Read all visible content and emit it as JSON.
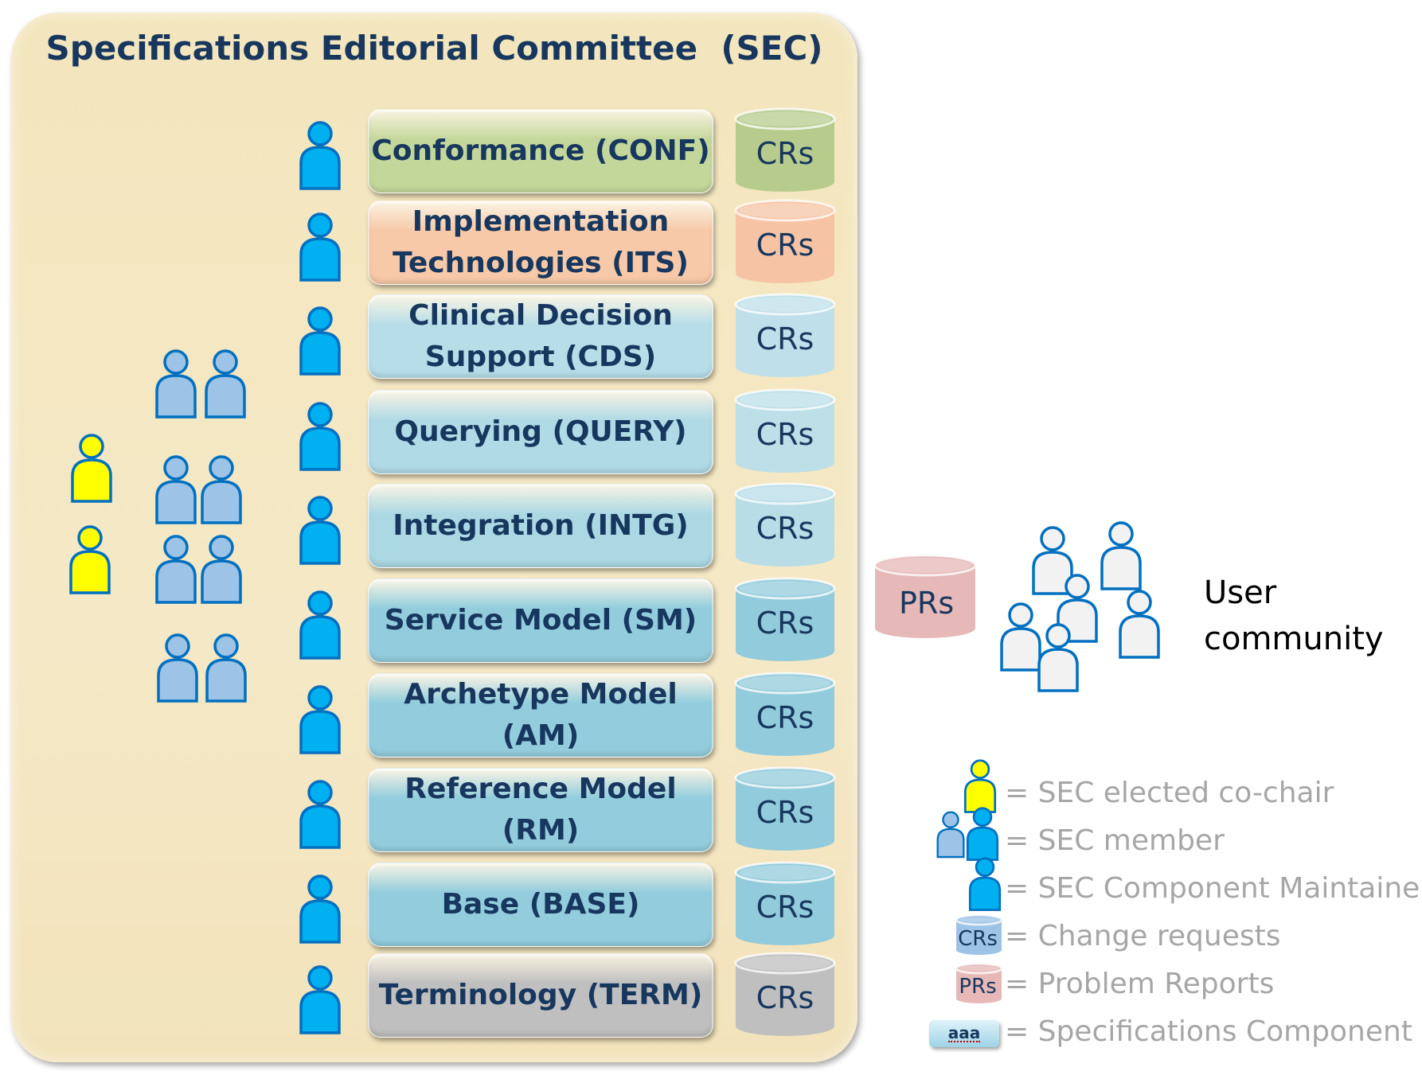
{
  "title": "Specifications Editorial Committee  (SEC)",
  "components": [
    {
      "label": "Conformance (CONF)",
      "fill": "#c4d79b",
      "cr_fill": "#b7cc8c",
      "cr_label": "CRs"
    },
    {
      "label": "Implementation\nTechnologies (ITS)",
      "fill": "#f8c9a8",
      "cr_fill": "#f6c4a4",
      "cr_label": "CRs"
    },
    {
      "label": "Clinical Decision\nSupport (CDS)",
      "fill": "#b7dee8",
      "cr_fill": "#bfe0ea",
      "cr_label": "CRs"
    },
    {
      "label": "Querying (QUERY)",
      "fill": "#b0dae6",
      "cr_fill": "#bcdfe8",
      "cr_label": "CRs"
    },
    {
      "label": "Integration (INTG)",
      "fill": "#acd8e4",
      "cr_fill": "#b9dde7",
      "cr_label": "CRs"
    },
    {
      "label": "Service Model (SM)",
      "fill": "#93cddd",
      "cr_fill": "#92cbdb",
      "cr_label": "CRs"
    },
    {
      "label": "Archetype Model (AM)",
      "fill": "#93cddd",
      "cr_fill": "#92cbdb",
      "cr_label": "CRs"
    },
    {
      "label": "Reference Model (RM)",
      "fill": "#93cddd",
      "cr_fill": "#92cbdb",
      "cr_label": "CRs"
    },
    {
      "label": "Base (BASE)",
      "fill": "#93cddd",
      "cr_fill": "#92cbdb",
      "cr_label": "CRs"
    },
    {
      "label": "Terminology (TERM)",
      "fill": "#bfbfbf",
      "cr_fill": "#bfbfbf",
      "cr_label": "CRs"
    }
  ],
  "prs_label": "PRs",
  "user_community_label": "User\ncommunity",
  "legend": {
    "cochair": "= SEC elected co-chair",
    "member": "= SEC member",
    "maintainer": "= SEC Component Maintainer",
    "change_requests": "= Change requests",
    "problem_reports": "= Problem Reports",
    "spec_component": "= Specifications Component",
    "crs_icon_label": "CRs",
    "prs_icon_label": "PRs",
    "spec_icon_label": "aaa"
  },
  "colors": {
    "cochair": "#ffff00",
    "member": "#9dc3e6",
    "maintainer": "#00b0f0",
    "person_outline": "#0070c0",
    "user": "#f2f2f2",
    "prs": "#e6b9b8"
  }
}
